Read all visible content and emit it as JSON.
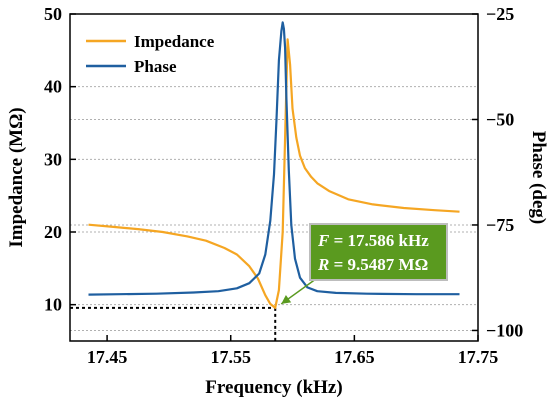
{
  "chart_data": {
    "type": "line",
    "title": "",
    "xlabel": "Frequency (kHz)",
    "ylabel": "Impedance (MΩ)",
    "y2label": "Phase (deg)",
    "xlim": [
      17.42,
      17.75
    ],
    "ylim": [
      5,
      50
    ],
    "y2lim": [
      -102.5,
      -25
    ],
    "x_ticks": [
      "17.45",
      "17.55",
      "17.65",
      "17.75"
    ],
    "x_tick_values": [
      17.45,
      17.55,
      17.65,
      17.75
    ],
    "y_ticks": [
      "10",
      "20",
      "30",
      "40",
      "50"
    ],
    "y_tick_values": [
      10,
      20,
      30,
      40,
      50
    ],
    "y2_ticks": [
      "−25",
      "−50",
      "−75",
      "−100"
    ],
    "y2_tick_values": [
      -25,
      -50,
      -75,
      -100
    ],
    "grid": "horizontal dotted",
    "legend_position": "top-left",
    "colors": {
      "impedance": "#f5a623",
      "phase": "#1f5fa0",
      "annotation_bg": "#5a9a1f",
      "annotation_border": "#bdbdbd",
      "arrow": "#5a9a1f"
    },
    "series": [
      {
        "name": "Impedance",
        "axis": "left",
        "x": [
          17.435,
          17.455,
          17.475,
          17.495,
          17.515,
          17.53,
          17.545,
          17.555,
          17.565,
          17.572,
          17.578,
          17.582,
          17.586,
          17.589,
          17.592,
          17.594,
          17.596,
          17.598,
          17.6,
          17.603,
          17.606,
          17.61,
          17.615,
          17.62,
          17.63,
          17.645,
          17.665,
          17.69,
          17.715,
          17.735
        ],
        "y": [
          21.0,
          20.7,
          20.4,
          20.0,
          19.4,
          18.8,
          17.8,
          16.9,
          15.3,
          13.6,
          11.3,
          10.1,
          9.55,
          12.0,
          20.0,
          33.0,
          46.5,
          43.0,
          37.0,
          33.0,
          30.5,
          28.8,
          27.6,
          26.7,
          25.6,
          24.5,
          23.8,
          23.3,
          23.0,
          22.8
        ]
      },
      {
        "name": "Phase",
        "axis": "right",
        "x": [
          17.435,
          17.46,
          17.49,
          17.52,
          17.54,
          17.555,
          17.565,
          17.573,
          17.578,
          17.582,
          17.585,
          17.587,
          17.589,
          17.591,
          17.592,
          17.593,
          17.594,
          17.595,
          17.597,
          17.599,
          17.602,
          17.606,
          17.612,
          17.62,
          17.635,
          17.66,
          17.7,
          17.735
        ],
        "y": [
          -91.5,
          -91.4,
          -91.3,
          -91.0,
          -90.7,
          -90.0,
          -88.8,
          -86.5,
          -82.0,
          -74.0,
          -63.0,
          -50.0,
          -36.0,
          -29.0,
          -27.0,
          -28.5,
          -33.0,
          -45.0,
          -62.0,
          -75.0,
          -83.0,
          -87.5,
          -89.8,
          -90.7,
          -91.1,
          -91.3,
          -91.4,
          -91.4
        ]
      }
    ],
    "annotation": {
      "line1_var": "F",
      "line1_value": " = 17.586 kHz",
      "line2_var": "R",
      "line2_value": " = 9.5487 MΩ",
      "point_x": 17.586,
      "point_y": 9.55
    }
  }
}
